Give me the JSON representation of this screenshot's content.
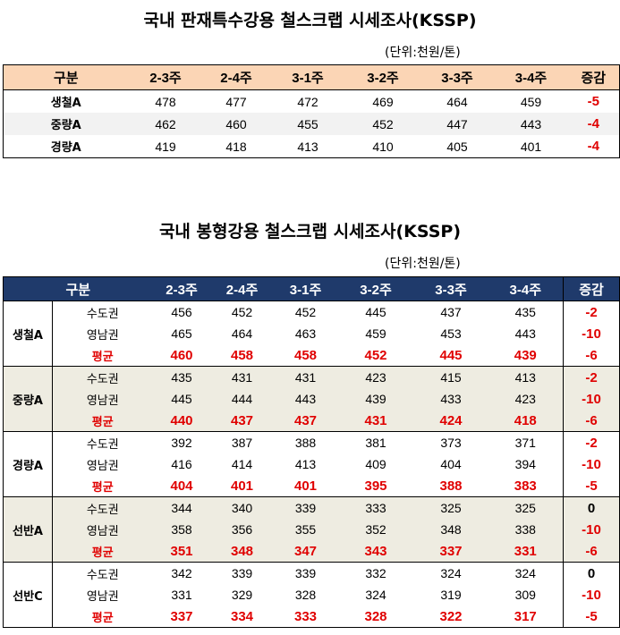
{
  "table1": {
    "title": "국내 판재특수강용 철스크랩 시세조사(KSSP)",
    "unit": "(단위:천원/톤)",
    "headers": [
      "구분",
      "2-3주",
      "2-4주",
      "3-1주",
      "3-2주",
      "3-3주",
      "3-4주",
      "증감"
    ],
    "rows": [
      {
        "label": "생철A",
        "values": [
          "478",
          "477",
          "472",
          "469",
          "464",
          "459"
        ],
        "change": "-5"
      },
      {
        "label": "중량A",
        "values": [
          "462",
          "460",
          "455",
          "452",
          "447",
          "443"
        ],
        "change": "-4"
      },
      {
        "label": "경량A",
        "values": [
          "419",
          "418",
          "413",
          "410",
          "405",
          "401"
        ],
        "change": "-4"
      }
    ]
  },
  "table2": {
    "title": "국내 봉형강용 철스크랩 시세조사(KSSP)",
    "unit": "(단위:천원/톤)",
    "headers": [
      "구분",
      "2-3주",
      "2-4주",
      "3-1주",
      "3-2주",
      "3-3주",
      "3-4주",
      "증감"
    ],
    "groups": [
      {
        "label": "생철A",
        "rows": [
          {
            "region": "수도권",
            "values": [
              "456",
              "452",
              "452",
              "445",
              "437",
              "435"
            ],
            "change": "-2"
          },
          {
            "region": "영남권",
            "values": [
              "465",
              "464",
              "463",
              "459",
              "453",
              "443"
            ],
            "change": "-10"
          },
          {
            "region": "평균",
            "values": [
              "460",
              "458",
              "458",
              "452",
              "445",
              "439"
            ],
            "change": "-6"
          }
        ]
      },
      {
        "label": "중량A",
        "rows": [
          {
            "region": "수도권",
            "values": [
              "435",
              "431",
              "431",
              "423",
              "415",
              "413"
            ],
            "change": "-2"
          },
          {
            "region": "영남권",
            "values": [
              "445",
              "444",
              "443",
              "439",
              "433",
              "423"
            ],
            "change": "-10"
          },
          {
            "region": "평균",
            "values": [
              "440",
              "437",
              "437",
              "431",
              "424",
              "418"
            ],
            "change": "-6"
          }
        ]
      },
      {
        "label": "경량A",
        "rows": [
          {
            "region": "수도권",
            "values": [
              "392",
              "387",
              "388",
              "381",
              "373",
              "371"
            ],
            "change": "-2"
          },
          {
            "region": "영남권",
            "values": [
              "416",
              "414",
              "413",
              "409",
              "404",
              "394"
            ],
            "change": "-10"
          },
          {
            "region": "평균",
            "values": [
              "404",
              "401",
              "401",
              "395",
              "388",
              "383"
            ],
            "change": "-5"
          }
        ]
      },
      {
        "label": "선반A",
        "rows": [
          {
            "region": "수도권",
            "values": [
              "344",
              "340",
              "339",
              "333",
              "325",
              "325"
            ],
            "change": "0"
          },
          {
            "region": "영남권",
            "values": [
              "358",
              "356",
              "355",
              "352",
              "348",
              "338"
            ],
            "change": "-10"
          },
          {
            "region": "평균",
            "values": [
              "351",
              "348",
              "347",
              "343",
              "337",
              "331"
            ],
            "change": "-6"
          }
        ]
      },
      {
        "label": "선반C",
        "rows": [
          {
            "region": "수도권",
            "values": [
              "342",
              "339",
              "339",
              "332",
              "324",
              "324"
            ],
            "change": "0"
          },
          {
            "region": "영남권",
            "values": [
              "331",
              "329",
              "328",
              "324",
              "319",
              "309"
            ],
            "change": "-10"
          },
          {
            "region": "평균",
            "values": [
              "337",
              "334",
              "333",
              "328",
              "322",
              "317"
            ],
            "change": "-5"
          }
        ]
      }
    ]
  }
}
